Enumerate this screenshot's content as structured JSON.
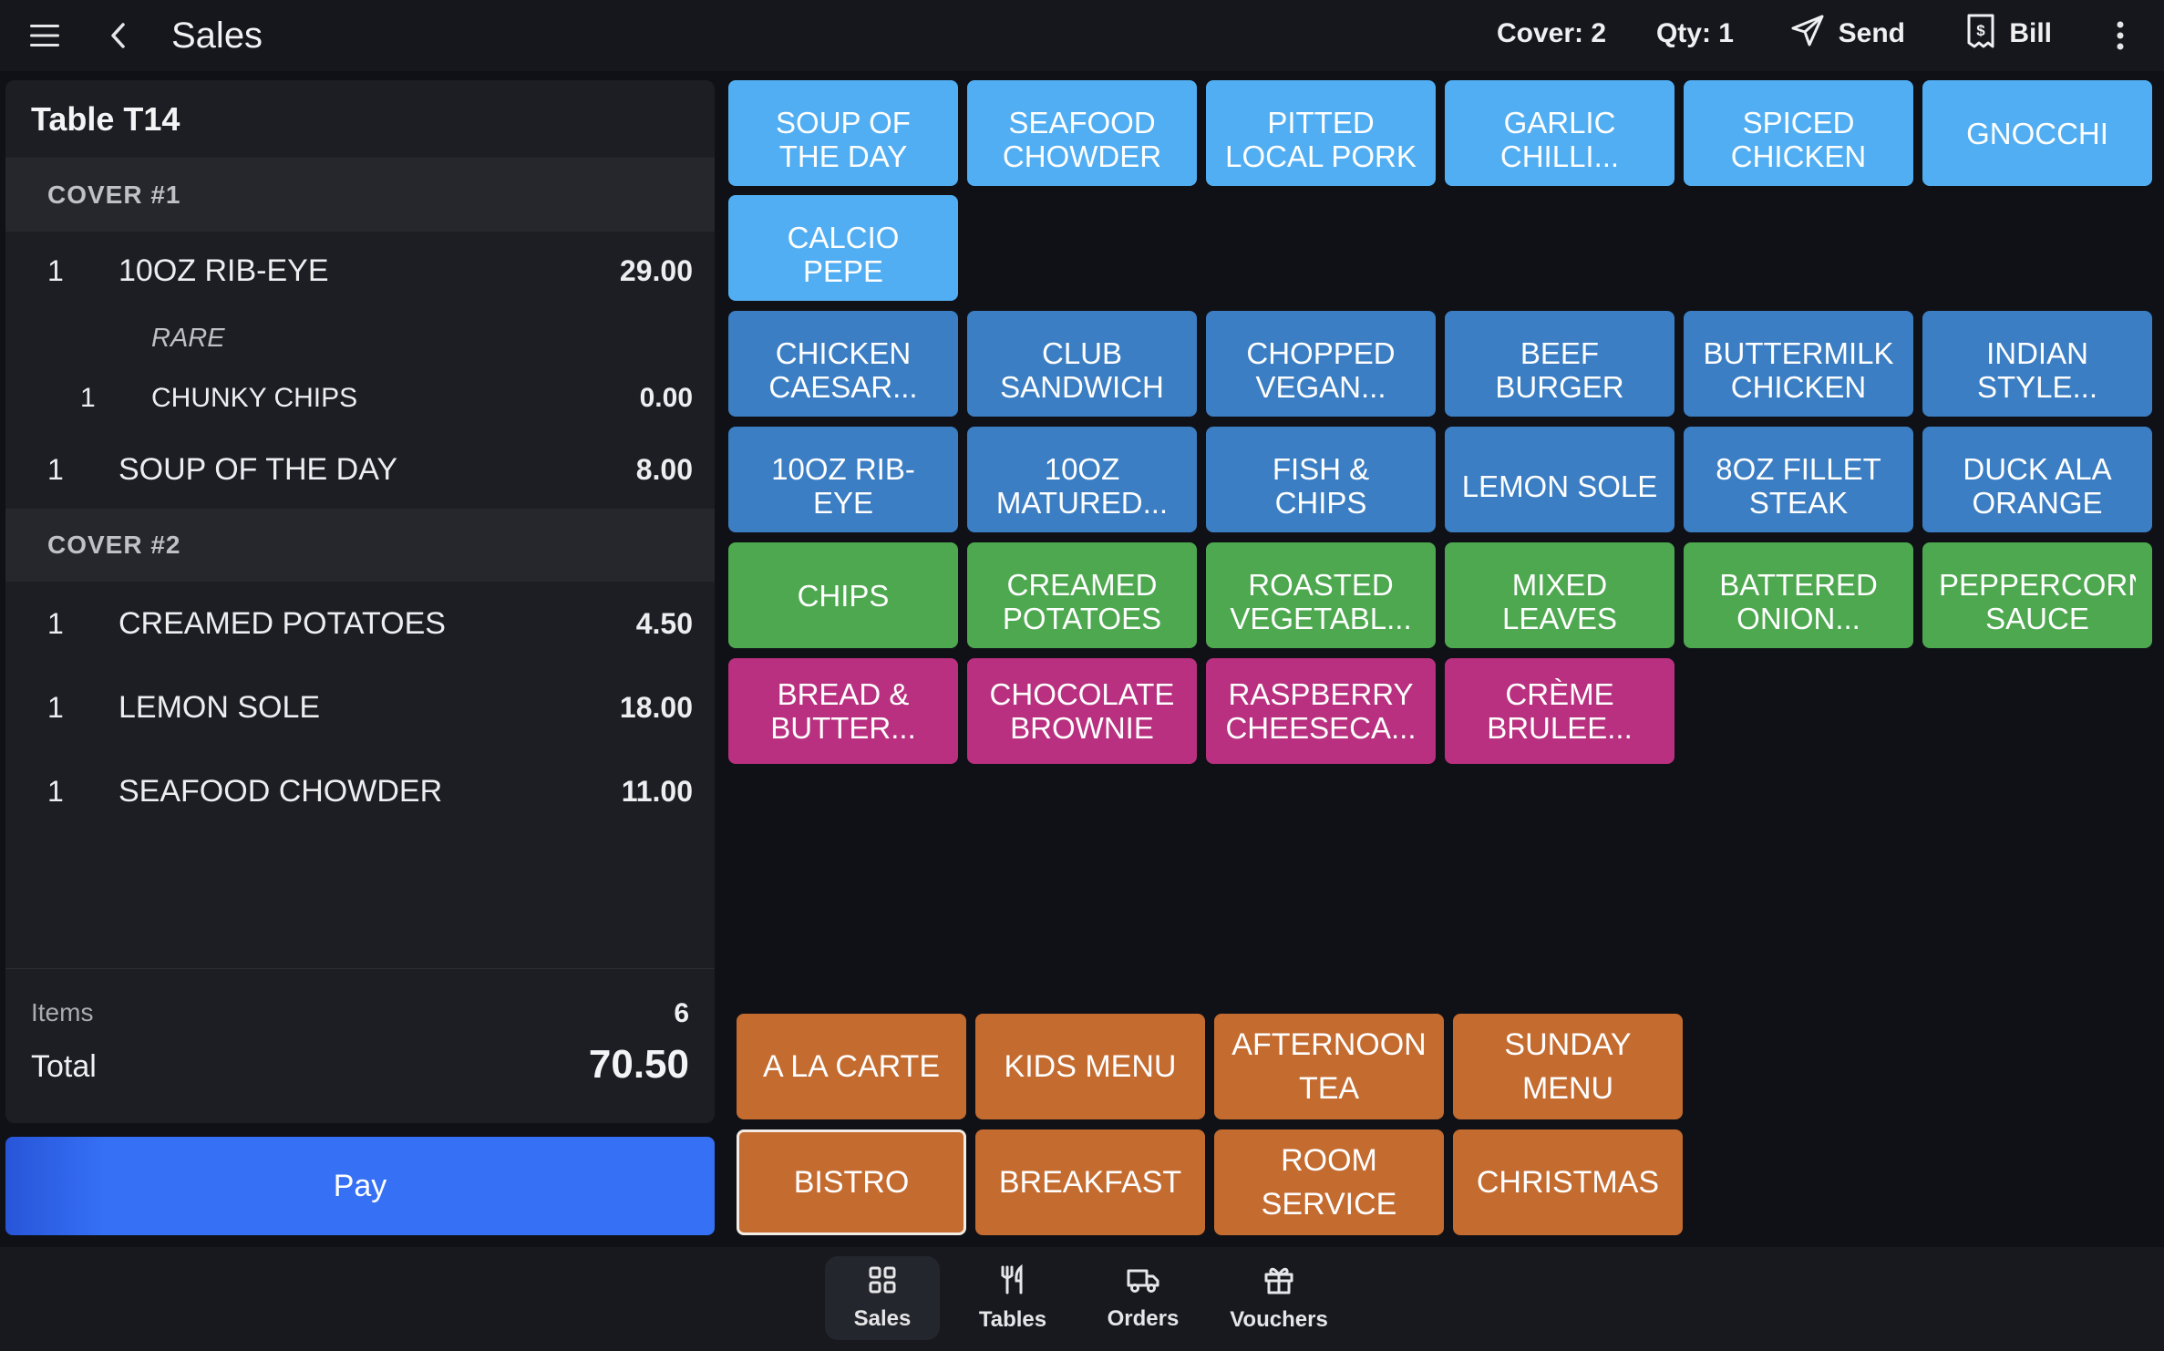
{
  "header": {
    "title": "Sales",
    "cover_label": "Cover: 2",
    "qty_label": "Qty: 1",
    "send_label": "Send",
    "bill_label": "Bill",
    "icons": [
      "hamburger-menu-icon",
      "back-arrow-icon",
      "send-icon",
      "bill-icon",
      "more-vertical-icon"
    ]
  },
  "order": {
    "table_name": "Table T14",
    "covers": [
      {
        "label": "COVER #1",
        "lines": [
          {
            "qty": "1",
            "name": "10OZ RIB-EYE",
            "price": "29.00"
          },
          {
            "modifier": "RARE"
          },
          {
            "qty": "1",
            "name": "CHUNKY CHIPS",
            "price": "0.00"
          },
          {
            "qty": "1",
            "name": "SOUP OF THE DAY",
            "price": "8.00"
          }
        ]
      },
      {
        "label": "COVER #2",
        "lines": [
          {
            "qty": "1",
            "name": "CREAMED POTATOES",
            "price": "4.50"
          },
          {
            "qty": "1",
            "name": "LEMON SOLE",
            "price": "18.00"
          },
          {
            "qty": "1",
            "name": "SEAFOOD CHOWDER",
            "price": "11.00"
          }
        ]
      }
    ],
    "items_label": "Items",
    "items_count": "6",
    "total_label": "Total",
    "total_value": "70.50",
    "pay_label": "Pay"
  },
  "products": {
    "colors": {
      "light": "#51aef2",
      "blue": "#3b7ec3",
      "green": "#4da84f",
      "pink": "#b8307f"
    },
    "starters": [
      "SOUP OF THE DAY",
      "SEAFOOD CHOWDER",
      "PITTED LOCAL PORK",
      "GARLIC CHILLI...",
      "SPICED CHICKEN",
      "GNOCCHI",
      "CALCIO PEPE"
    ],
    "mains_1": [
      "CHICKEN CAESAR...",
      "CLUB SANDWICH",
      "CHOPPED VEGAN...",
      "BEEF BURGER",
      "BUTTERMILK CHICKEN",
      "INDIAN STYLE..."
    ],
    "mains_2": [
      "10OZ RIB-EYE",
      "10OZ MATURED...",
      "FISH & CHIPS",
      "LEMON SOLE",
      "8OZ FILLET STEAK",
      "DUCK ALA ORANGE"
    ],
    "sides": [
      "CHIPS",
      "CREAMED POTATOES",
      "ROASTED VEGETABL...",
      "MIXED LEAVES",
      "BATTERED ONION...",
      "PEPPERCORN SAUCE"
    ],
    "desserts": [
      "BREAD & BUTTER...",
      "CHOCOLATE BROWNIE",
      "RASPBERRY CHEESECA...",
      "CRÈME BRULEE..."
    ]
  },
  "menus": {
    "color": "#c46b30",
    "items": [
      "A LA CARTE",
      "KIDS MENU",
      "AFTERNOON TEA",
      "SUNDAY MENU",
      "BISTRO",
      "BREAKFAST",
      "ROOM SERVICE",
      "CHRISTMAS"
    ],
    "selected": "BISTRO"
  },
  "nav": {
    "items": [
      {
        "label": "Sales",
        "icon": "grid-icon",
        "active": true
      },
      {
        "label": "Tables",
        "icon": "fork-knife-icon",
        "active": false
      },
      {
        "label": "Orders",
        "icon": "delivery-truck-icon",
        "active": false
      },
      {
        "label": "Vouchers",
        "icon": "gift-icon",
        "active": false
      }
    ]
  }
}
